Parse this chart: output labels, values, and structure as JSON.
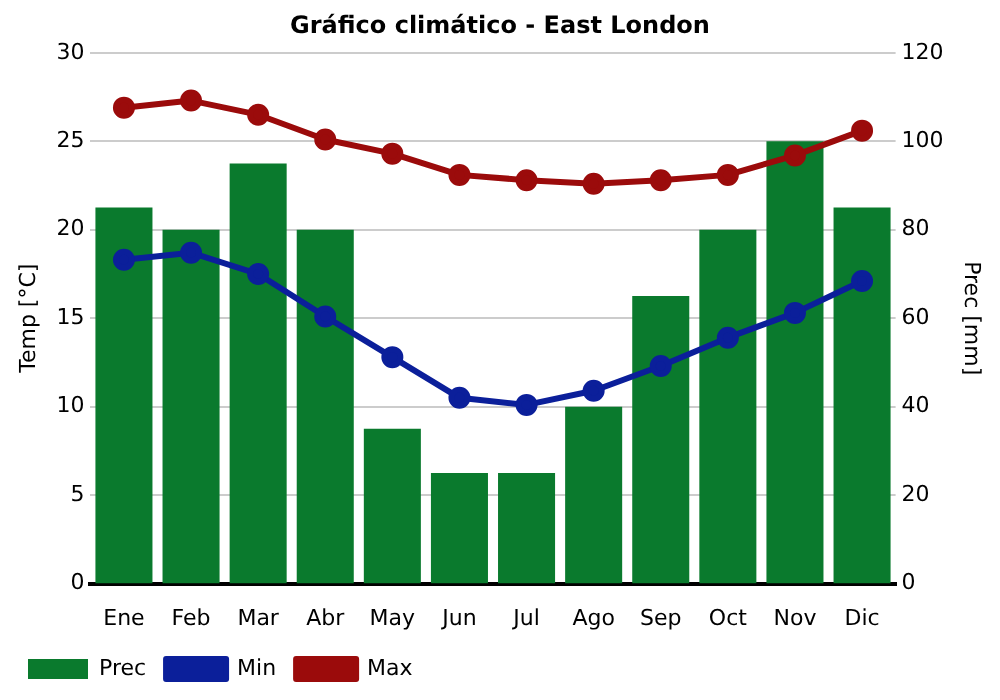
{
  "chart_data": {
    "type": "bar",
    "title": "Gráfico climático - East London",
    "ylabel": "Temp [°C]",
    "y2label": "Prec [mm]",
    "categories": [
      "Ene",
      "Feb",
      "Mar",
      "Abr",
      "May",
      "Jun",
      "Jul",
      "Ago",
      "Sep",
      "Oct",
      "Nov",
      "Dic"
    ],
    "series": [
      {
        "name": "Prec",
        "axis": "y2",
        "color": "#0a7a2d",
        "values": [
          85,
          80,
          95,
          80,
          35,
          25,
          25,
          40,
          65,
          80,
          100,
          85
        ]
      },
      {
        "name": "Min",
        "type": "line",
        "color": "#0b1f9a",
        "values": [
          18.3,
          18.7,
          17.5,
          15.1,
          12.8,
          10.5,
          10.1,
          10.9,
          12.3,
          13.9,
          15.3,
          17.1
        ]
      },
      {
        "name": "Max",
        "type": "line",
        "color": "#9b0b0b",
        "values": [
          26.9,
          27.3,
          26.5,
          25.1,
          24.3,
          23.1,
          22.8,
          22.6,
          22.8,
          23.1,
          24.2,
          25.6
        ]
      }
    ],
    "ylim": [
      0,
      30
    ],
    "yticks": [
      0,
      5,
      10,
      15,
      20,
      25,
      30
    ],
    "y2lim": [
      0,
      120
    ],
    "y2ticks": [
      0,
      20,
      40,
      60,
      80,
      100,
      120
    ],
    "grid": "y",
    "legend": "bottom left",
    "marker": "circle",
    "line_style": "solid"
  }
}
